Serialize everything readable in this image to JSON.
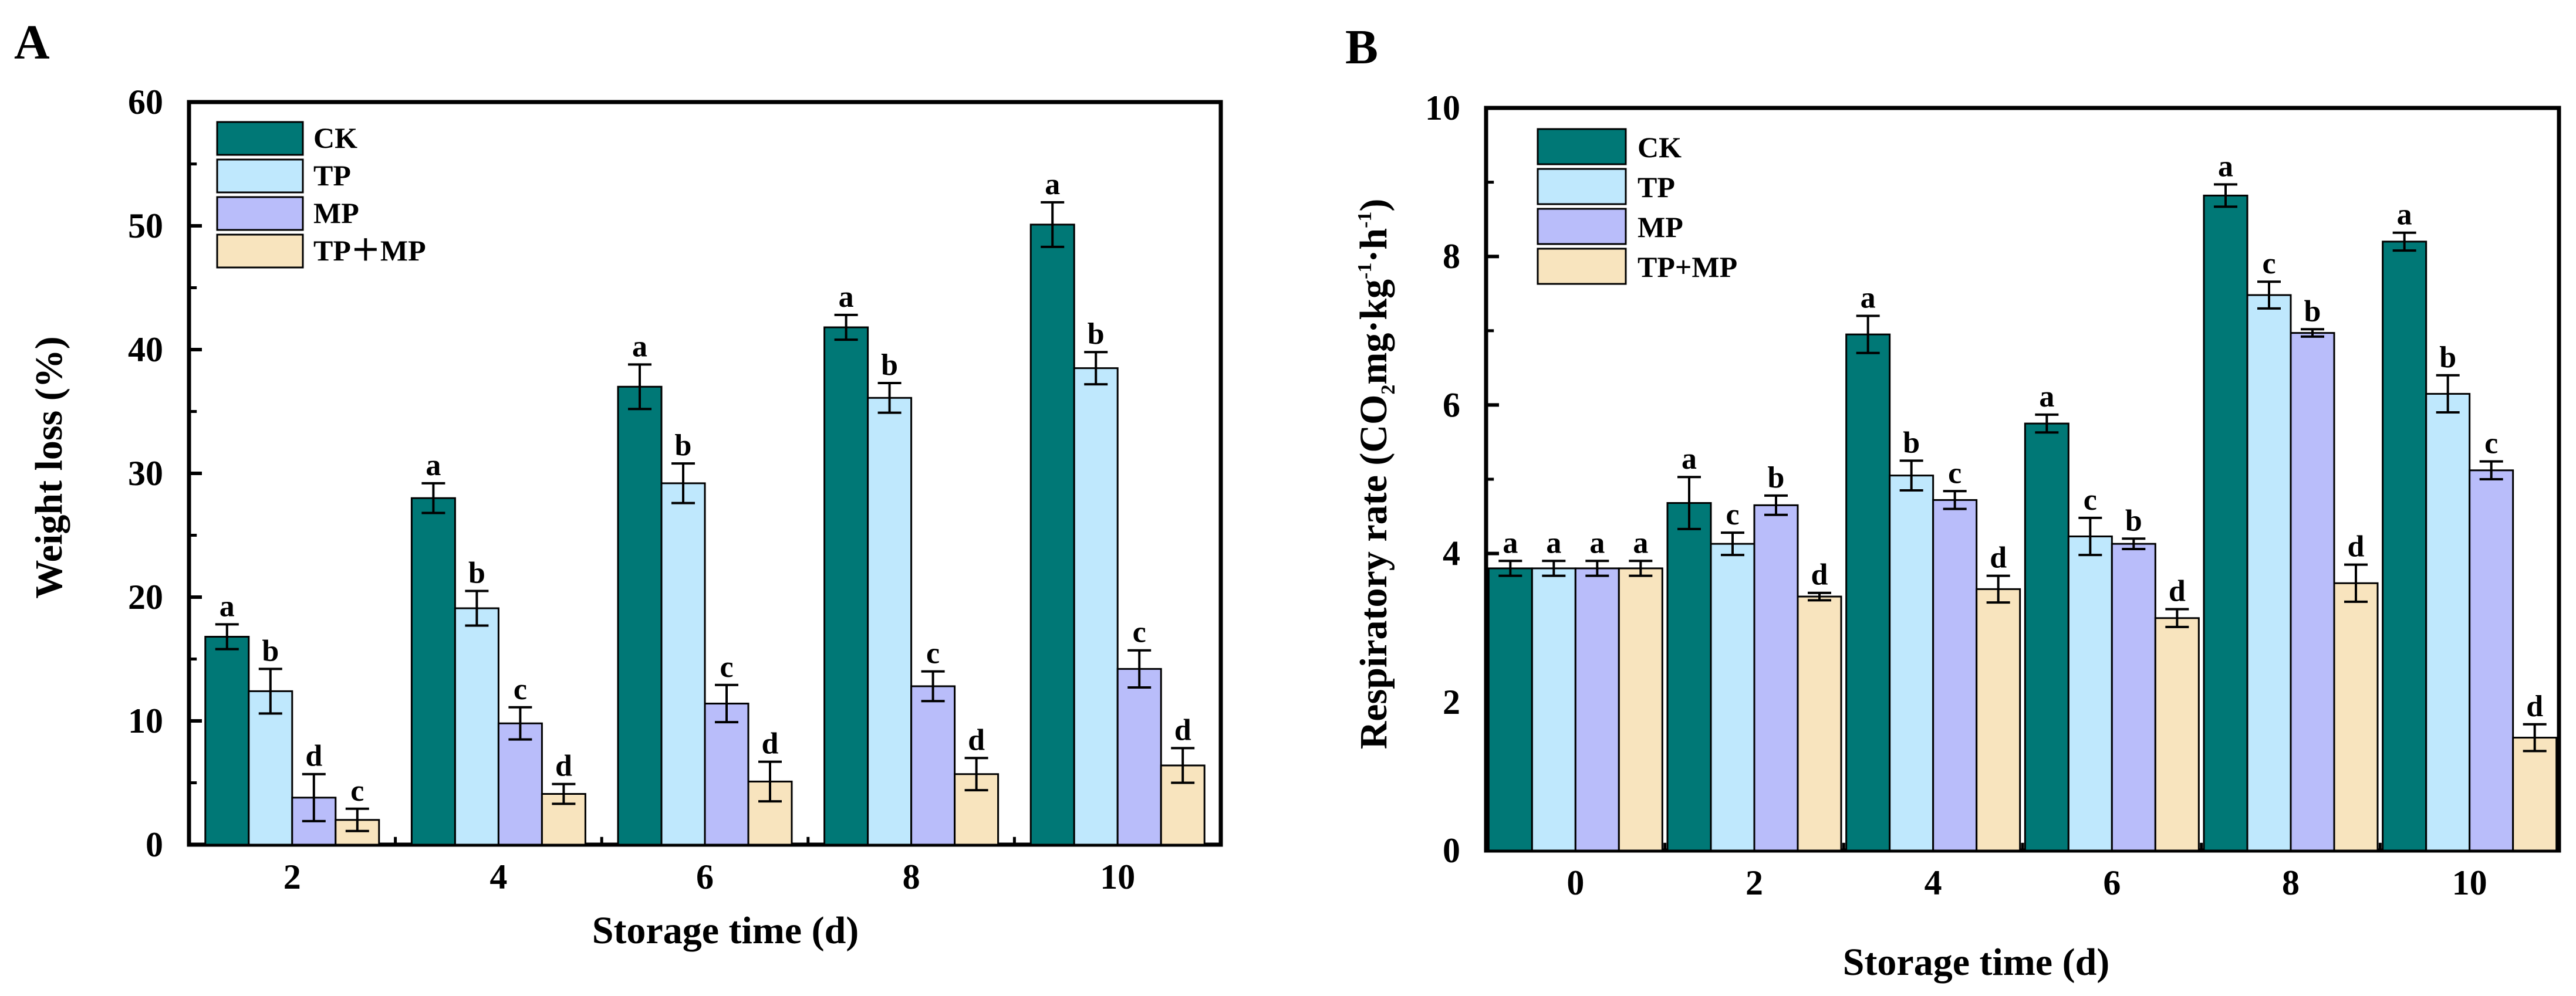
{
  "colors": {
    "CK": "#007876",
    "TP": "#bfe8fd",
    "MP": "#b9bdfa",
    "TP+MP": "#f8e4be",
    "stroke": "#000000"
  },
  "chart_data": [
    {
      "type": "bar",
      "panel": "A",
      "title": "",
      "xlabel": "Storage time (d)",
      "ylabel": "Weight loss (%)",
      "ylim": [
        0,
        60
      ],
      "yticks": [
        "0",
        "10",
        "20",
        "30",
        "40",
        "50",
        "60"
      ],
      "categories": [
        "2",
        "4",
        "6",
        "8",
        "10"
      ],
      "legend_position": "top-left",
      "series": [
        {
          "name": "CK",
          "legend_label": "CK",
          "values": [
            16.8,
            28.0,
            37.0,
            41.8,
            50.1
          ],
          "errors": [
            1.0,
            1.2,
            1.8,
            1.0,
            1.8
          ],
          "letters": [
            "a",
            "a",
            "a",
            "a",
            "a"
          ]
        },
        {
          "name": "TP",
          "legend_label": "TP",
          "values": [
            12.4,
            19.1,
            29.2,
            36.1,
            38.5
          ],
          "errors": [
            1.8,
            1.4,
            1.6,
            1.2,
            1.3
          ],
          "letters": [
            "b",
            "b",
            "b",
            "b",
            "b"
          ]
        },
        {
          "name": "MP",
          "legend_label": "MP",
          "values": [
            3.8,
            9.8,
            11.4,
            12.8,
            14.2
          ],
          "errors": [
            1.9,
            1.3,
            1.5,
            1.2,
            1.5
          ],
          "letters": [
            "d",
            "c",
            "c",
            "c",
            "c"
          ]
        },
        {
          "name": "TP+MP",
          "legend_label": "TP＋MP",
          "values": [
            2.0,
            4.1,
            5.1,
            5.7,
            6.4
          ],
          "errors": [
            0.9,
            0.8,
            1.6,
            1.3,
            1.4
          ],
          "letters": [
            "c",
            "d",
            "d",
            "d",
            "d"
          ]
        }
      ]
    },
    {
      "type": "bar",
      "panel": "B",
      "title": "",
      "xlabel": "Storage time (d)",
      "ylabel_main": "Respiratory rate (CO",
      "ylabel_mid": "mg·kg",
      "ylabel_end": "·h",
      "ylabel_close": ")",
      "ylabel_sub": "2",
      "ylabel_sup": "-1",
      "ylim": [
        0,
        10
      ],
      "yticks": [
        "0",
        "2",
        "4",
        "6",
        "8",
        "10"
      ],
      "categories": [
        "0",
        "2",
        "4",
        "6",
        "8",
        "10"
      ],
      "legend_position": "top-left",
      "series": [
        {
          "name": "CK",
          "legend_label": "CK",
          "values": [
            3.8,
            4.68,
            6.95,
            5.75,
            8.82,
            8.2
          ],
          "errors": [
            0.1,
            0.35,
            0.25,
            0.12,
            0.15,
            0.12
          ],
          "letters": [
            "a",
            "a",
            "a",
            "a",
            "a",
            "a"
          ]
        },
        {
          "name": "TP",
          "legend_label": "TP",
          "values": [
            3.8,
            4.13,
            5.05,
            4.23,
            7.48,
            6.15
          ],
          "errors": [
            0.1,
            0.15,
            0.2,
            0.25,
            0.18,
            0.25
          ],
          "letters": [
            "a",
            "c",
            "b",
            "c",
            "c",
            "b"
          ]
        },
        {
          "name": "MP",
          "legend_label": "MP",
          "values": [
            3.8,
            4.65,
            4.72,
            4.13,
            6.97,
            5.12
          ],
          "errors": [
            0.1,
            0.13,
            0.12,
            0.07,
            0.05,
            0.12
          ],
          "letters": [
            "a",
            "b",
            "c",
            "b",
            "b",
            "c"
          ]
        },
        {
          "name": "TP+MP",
          "legend_label": "TP+MP",
          "values": [
            3.8,
            3.42,
            3.52,
            3.13,
            3.6,
            1.52
          ],
          "errors": [
            0.1,
            0.05,
            0.18,
            0.12,
            0.25,
            0.18
          ],
          "letters": [
            "a",
            "d",
            "d",
            "d",
            "d",
            "d"
          ]
        }
      ]
    }
  ]
}
